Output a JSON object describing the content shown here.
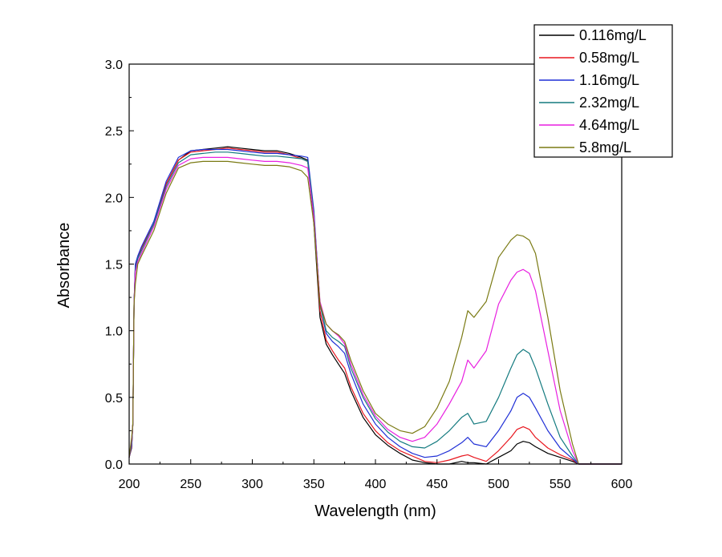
{
  "chart_data": {
    "type": "line",
    "title": "",
    "xlabel": "Wavelength (nm)",
    "ylabel": "Absorbance",
    "xlim": [
      200,
      600
    ],
    "ylim": [
      0,
      3.0
    ],
    "xticks": [
      200,
      250,
      300,
      350,
      400,
      450,
      500,
      550,
      600
    ],
    "xtick_labels": [
      "200",
      "250",
      "300",
      "350",
      "400",
      "450",
      "500",
      "550",
      "600"
    ],
    "yticks": [
      0,
      0.5,
      1.0,
      1.5,
      2.0,
      2.5,
      3.0
    ],
    "ytick_labels": [
      "0.0",
      "0.5",
      "1.0",
      "1.5",
      "2.0",
      "2.5",
      "3.0"
    ],
    "grid": false,
    "legend_position": "top-right",
    "series": [
      {
        "name": "0.116mg/L",
        "color": "#000000",
        "points": [
          [
            200,
            0.05
          ],
          [
            202,
            0.12
          ],
          [
            203,
            0.3
          ],
          [
            204,
            1.2
          ],
          [
            205,
            1.48
          ],
          [
            207,
            1.55
          ],
          [
            210,
            1.62
          ],
          [
            220,
            1.8
          ],
          [
            230,
            2.1
          ],
          [
            240,
            2.28
          ],
          [
            250,
            2.35
          ],
          [
            260,
            2.36
          ],
          [
            270,
            2.37
          ],
          [
            280,
            2.38
          ],
          [
            290,
            2.37
          ],
          [
            300,
            2.36
          ],
          [
            310,
            2.35
          ],
          [
            320,
            2.35
          ],
          [
            330,
            2.33
          ],
          [
            340,
            2.3
          ],
          [
            345,
            2.28
          ],
          [
            350,
            1.8
          ],
          [
            355,
            1.1
          ],
          [
            360,
            0.9
          ],
          [
            365,
            0.82
          ],
          [
            370,
            0.75
          ],
          [
            375,
            0.68
          ],
          [
            380,
            0.55
          ],
          [
            390,
            0.35
          ],
          [
            400,
            0.22
          ],
          [
            410,
            0.14
          ],
          [
            420,
            0.08
          ],
          [
            430,
            0.03
          ],
          [
            440,
            0.01
          ],
          [
            450,
            0.0
          ],
          [
            460,
            0.0
          ],
          [
            470,
            0.02
          ],
          [
            475,
            0.01
          ],
          [
            480,
            0.01
          ],
          [
            490,
            0.0
          ],
          [
            500,
            0.05
          ],
          [
            510,
            0.1
          ],
          [
            515,
            0.15
          ],
          [
            520,
            0.17
          ],
          [
            525,
            0.16
          ],
          [
            530,
            0.13
          ],
          [
            540,
            0.08
          ],
          [
            550,
            0.05
          ],
          [
            560,
            0.02
          ],
          [
            565,
            0.0
          ],
          [
            600,
            0.0
          ]
        ]
      },
      {
        "name": "0.58mg/L",
        "color": "#e8171f",
        "points": [
          [
            200,
            0.05
          ],
          [
            202,
            0.13
          ],
          [
            203,
            0.3
          ],
          [
            204,
            1.2
          ],
          [
            205,
            1.47
          ],
          [
            207,
            1.55
          ],
          [
            210,
            1.62
          ],
          [
            220,
            1.8
          ],
          [
            230,
            2.1
          ],
          [
            240,
            2.28
          ],
          [
            250,
            2.34
          ],
          [
            260,
            2.35
          ],
          [
            270,
            2.36
          ],
          [
            280,
            2.37
          ],
          [
            290,
            2.36
          ],
          [
            300,
            2.35
          ],
          [
            310,
            2.34
          ],
          [
            320,
            2.34
          ],
          [
            330,
            2.32
          ],
          [
            340,
            2.29
          ],
          [
            345,
            2.27
          ],
          [
            350,
            1.85
          ],
          [
            355,
            1.15
          ],
          [
            360,
            0.93
          ],
          [
            365,
            0.85
          ],
          [
            370,
            0.78
          ],
          [
            375,
            0.72
          ],
          [
            380,
            0.58
          ],
          [
            390,
            0.38
          ],
          [
            400,
            0.25
          ],
          [
            410,
            0.16
          ],
          [
            420,
            0.1
          ],
          [
            430,
            0.06
          ],
          [
            440,
            0.02
          ],
          [
            450,
            0.01
          ],
          [
            460,
            0.03
          ],
          [
            470,
            0.06
          ],
          [
            475,
            0.07
          ],
          [
            480,
            0.05
          ],
          [
            490,
            0.02
          ],
          [
            500,
            0.1
          ],
          [
            510,
            0.2
          ],
          [
            515,
            0.26
          ],
          [
            520,
            0.28
          ],
          [
            525,
            0.26
          ],
          [
            530,
            0.2
          ],
          [
            540,
            0.12
          ],
          [
            550,
            0.07
          ],
          [
            560,
            0.03
          ],
          [
            565,
            0.0
          ],
          [
            600,
            0.0
          ]
        ]
      },
      {
        "name": "1.16mg/L",
        "color": "#1f2fd6",
        "points": [
          [
            200,
            0.05
          ],
          [
            202,
            0.14
          ],
          [
            203,
            0.3
          ],
          [
            204,
            1.2
          ],
          [
            205,
            1.5
          ],
          [
            207,
            1.56
          ],
          [
            210,
            1.63
          ],
          [
            220,
            1.82
          ],
          [
            230,
            2.12
          ],
          [
            240,
            2.3
          ],
          [
            250,
            2.35
          ],
          [
            260,
            2.36
          ],
          [
            270,
            2.36
          ],
          [
            280,
            2.36
          ],
          [
            290,
            2.35
          ],
          [
            300,
            2.34
          ],
          [
            310,
            2.33
          ],
          [
            320,
            2.33
          ],
          [
            330,
            2.32
          ],
          [
            340,
            2.31
          ],
          [
            345,
            2.3
          ],
          [
            350,
            1.9
          ],
          [
            355,
            1.2
          ],
          [
            360,
            0.98
          ],
          [
            365,
            0.92
          ],
          [
            370,
            0.88
          ],
          [
            375,
            0.83
          ],
          [
            380,
            0.68
          ],
          [
            390,
            0.45
          ],
          [
            400,
            0.3
          ],
          [
            410,
            0.2
          ],
          [
            420,
            0.13
          ],
          [
            430,
            0.08
          ],
          [
            440,
            0.05
          ],
          [
            450,
            0.06
          ],
          [
            460,
            0.1
          ],
          [
            470,
            0.16
          ],
          [
            475,
            0.2
          ],
          [
            480,
            0.15
          ],
          [
            490,
            0.13
          ],
          [
            500,
            0.25
          ],
          [
            510,
            0.4
          ],
          [
            515,
            0.5
          ],
          [
            520,
            0.53
          ],
          [
            525,
            0.5
          ],
          [
            530,
            0.42
          ],
          [
            540,
            0.25
          ],
          [
            550,
            0.12
          ],
          [
            560,
            0.04
          ],
          [
            565,
            0.0
          ],
          [
            600,
            0.0
          ]
        ]
      },
      {
        "name": "2.32mg/L",
        "color": "#137a7f",
        "points": [
          [
            200,
            0.05
          ],
          [
            202,
            0.16
          ],
          [
            203,
            0.3
          ],
          [
            204,
            1.2
          ],
          [
            205,
            1.46
          ],
          [
            207,
            1.54
          ],
          [
            210,
            1.6
          ],
          [
            220,
            1.8
          ],
          [
            230,
            2.08
          ],
          [
            240,
            2.26
          ],
          [
            250,
            2.32
          ],
          [
            260,
            2.33
          ],
          [
            270,
            2.34
          ],
          [
            280,
            2.34
          ],
          [
            290,
            2.33
          ],
          [
            300,
            2.32
          ],
          [
            310,
            2.31
          ],
          [
            320,
            2.31
          ],
          [
            330,
            2.3
          ],
          [
            340,
            2.29
          ],
          [
            345,
            2.27
          ],
          [
            350,
            1.88
          ],
          [
            355,
            1.2
          ],
          [
            360,
            1.0
          ],
          [
            365,
            0.95
          ],
          [
            370,
            0.92
          ],
          [
            375,
            0.88
          ],
          [
            380,
            0.72
          ],
          [
            390,
            0.5
          ],
          [
            400,
            0.34
          ],
          [
            410,
            0.24
          ],
          [
            420,
            0.17
          ],
          [
            430,
            0.13
          ],
          [
            440,
            0.12
          ],
          [
            450,
            0.17
          ],
          [
            460,
            0.25
          ],
          [
            470,
            0.35
          ],
          [
            475,
            0.38
          ],
          [
            480,
            0.3
          ],
          [
            490,
            0.32
          ],
          [
            500,
            0.5
          ],
          [
            510,
            0.72
          ],
          [
            515,
            0.82
          ],
          [
            520,
            0.86
          ],
          [
            525,
            0.83
          ],
          [
            530,
            0.72
          ],
          [
            540,
            0.45
          ],
          [
            550,
            0.2
          ],
          [
            560,
            0.06
          ],
          [
            565,
            0.0
          ],
          [
            600,
            0.0
          ]
        ]
      },
      {
        "name": "4.64mg/L",
        "color": "#e81fe0",
        "points": [
          [
            200,
            0.05
          ],
          [
            202,
            0.18
          ],
          [
            203,
            0.3
          ],
          [
            204,
            1.2
          ],
          [
            205,
            1.44
          ],
          [
            207,
            1.52
          ],
          [
            210,
            1.58
          ],
          [
            220,
            1.78
          ],
          [
            230,
            2.06
          ],
          [
            240,
            2.24
          ],
          [
            250,
            2.29
          ],
          [
            260,
            2.3
          ],
          [
            270,
            2.3
          ],
          [
            280,
            2.3
          ],
          [
            290,
            2.29
          ],
          [
            300,
            2.28
          ],
          [
            310,
            2.27
          ],
          [
            320,
            2.27
          ],
          [
            330,
            2.26
          ],
          [
            340,
            2.24
          ],
          [
            345,
            2.22
          ],
          [
            350,
            1.85
          ],
          [
            355,
            1.22
          ],
          [
            360,
            1.05
          ],
          [
            365,
            1.0
          ],
          [
            370,
            0.96
          ],
          [
            375,
            0.9
          ],
          [
            380,
            0.75
          ],
          [
            390,
            0.52
          ],
          [
            400,
            0.36
          ],
          [
            410,
            0.26
          ],
          [
            420,
            0.2
          ],
          [
            430,
            0.17
          ],
          [
            440,
            0.2
          ],
          [
            450,
            0.3
          ],
          [
            460,
            0.45
          ],
          [
            470,
            0.62
          ],
          [
            475,
            0.78
          ],
          [
            480,
            0.72
          ],
          [
            490,
            0.85
          ],
          [
            500,
            1.2
          ],
          [
            510,
            1.38
          ],
          [
            515,
            1.44
          ],
          [
            520,
            1.46
          ],
          [
            525,
            1.43
          ],
          [
            530,
            1.3
          ],
          [
            540,
            0.85
          ],
          [
            550,
            0.4
          ],
          [
            560,
            0.1
          ],
          [
            565,
            0.0
          ],
          [
            600,
            0.0
          ]
        ]
      },
      {
        "name": "5.8mg/L",
        "color": "#7a7a13",
        "points": [
          [
            200,
            0.05
          ],
          [
            202,
            0.2
          ],
          [
            203,
            0.3
          ],
          [
            204,
            1.2
          ],
          [
            205,
            1.35
          ],
          [
            207,
            1.5
          ],
          [
            210,
            1.56
          ],
          [
            220,
            1.75
          ],
          [
            230,
            2.03
          ],
          [
            240,
            2.22
          ],
          [
            250,
            2.26
          ],
          [
            260,
            2.27
          ],
          [
            270,
            2.27
          ],
          [
            280,
            2.27
          ],
          [
            290,
            2.26
          ],
          [
            300,
            2.25
          ],
          [
            310,
            2.24
          ],
          [
            320,
            2.24
          ],
          [
            330,
            2.23
          ],
          [
            340,
            2.2
          ],
          [
            345,
            2.15
          ],
          [
            350,
            1.8
          ],
          [
            355,
            1.2
          ],
          [
            360,
            1.05
          ],
          [
            365,
            1.0
          ],
          [
            370,
            0.97
          ],
          [
            375,
            0.92
          ],
          [
            380,
            0.78
          ],
          [
            390,
            0.55
          ],
          [
            400,
            0.38
          ],
          [
            410,
            0.3
          ],
          [
            420,
            0.25
          ],
          [
            430,
            0.23
          ],
          [
            440,
            0.28
          ],
          [
            450,
            0.42
          ],
          [
            460,
            0.62
          ],
          [
            470,
            0.95
          ],
          [
            475,
            1.15
          ],
          [
            480,
            1.1
          ],
          [
            490,
            1.22
          ],
          [
            500,
            1.55
          ],
          [
            510,
            1.68
          ],
          [
            515,
            1.72
          ],
          [
            520,
            1.71
          ],
          [
            525,
            1.68
          ],
          [
            530,
            1.58
          ],
          [
            540,
            1.1
          ],
          [
            550,
            0.55
          ],
          [
            560,
            0.15
          ],
          [
            565,
            0.0
          ],
          [
            600,
            0.0
          ]
        ]
      }
    ]
  }
}
